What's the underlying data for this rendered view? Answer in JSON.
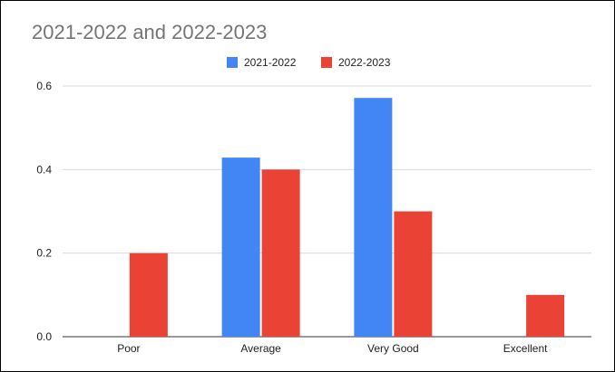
{
  "chart_data": {
    "type": "bar",
    "title": "2021-2022 and 2022-2023",
    "categories": [
      "Poor",
      "Average",
      "Very Good",
      "Excellent"
    ],
    "series": [
      {
        "name": "2021-2022",
        "color": "#4285F4",
        "values": [
          0,
          0.4286,
          0.5714,
          0
        ]
      },
      {
        "name": "2022-2023",
        "color": "#EA4335",
        "values": [
          0.2,
          0.4,
          0.3,
          0.1
        ]
      }
    ],
    "ylim": [
      0,
      0.6
    ],
    "yticks": [
      0.0,
      0.2,
      0.4,
      0.6
    ],
    "ytick_labels": [
      "0.0",
      "0.2",
      "0.4",
      "0.6"
    ],
    "grid": true,
    "legend_position": "top-center",
    "xlabel": "",
    "ylabel": ""
  }
}
